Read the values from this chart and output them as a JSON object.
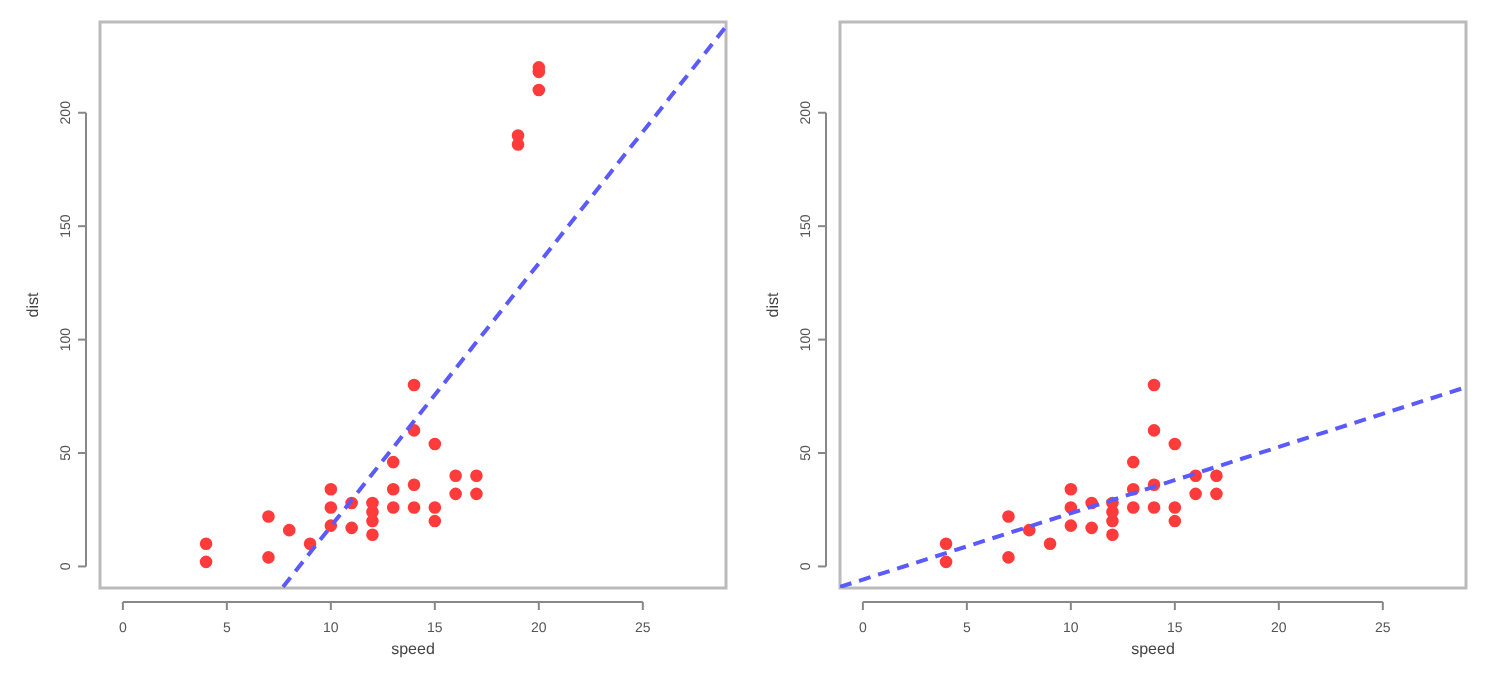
{
  "chart_data": [
    {
      "type": "scatter",
      "xlabel": "speed",
      "ylabel": "dist",
      "xlim": [
        -1.1,
        29
      ],
      "ylim": [
        -9.5,
        240
      ],
      "xticks": [
        0,
        5,
        10,
        15,
        20,
        25
      ],
      "yticks": [
        0,
        50,
        100,
        150,
        200
      ],
      "grid": false,
      "series": [
        {
          "marker": "circle",
          "color": "#ff3b3b",
          "x": [
            4,
            4,
            7,
            7,
            8,
            9,
            10,
            10,
            10,
            11,
            11,
            12,
            12,
            12,
            12,
            13,
            13,
            13,
            14,
            14,
            14,
            14,
            15,
            15,
            15,
            16,
            16,
            17,
            17,
            19,
            19,
            20,
            20,
            20
          ],
          "values": [
            2,
            10,
            4,
            22,
            16,
            10,
            18,
            26,
            34,
            17,
            28,
            14,
            20,
            24,
            28,
            26,
            34,
            46,
            26,
            36,
            60,
            80,
            20,
            26,
            54,
            32,
            40,
            32,
            40,
            186,
            190,
            210,
            218,
            220
          ]
        },
        {
          "type": "line",
          "color": "#5a5aff",
          "line_style": "dashed",
          "x": [
            7.7,
            29
          ],
          "values": [
            -9,
            238
          ]
        }
      ]
    },
    {
      "type": "scatter",
      "xlabel": "speed",
      "ylabel": "dist",
      "xlim": [
        -1.1,
        29
      ],
      "ylim": [
        -9.5,
        240
      ],
      "xticks": [
        0,
        5,
        10,
        15,
        20,
        25
      ],
      "yticks": [
        0,
        50,
        100,
        150,
        200
      ],
      "grid": false,
      "series": [
        {
          "marker": "circle",
          "color": "#ff3b3b",
          "x": [
            4,
            4,
            7,
            7,
            8,
            9,
            10,
            10,
            10,
            11,
            11,
            12,
            12,
            12,
            12,
            13,
            13,
            13,
            14,
            14,
            14,
            14,
            15,
            15,
            15,
            16,
            16,
            17,
            17
          ],
          "values": [
            2,
            10,
            4,
            22,
            16,
            10,
            18,
            26,
            34,
            17,
            28,
            14,
            20,
            24,
            28,
            26,
            34,
            46,
            26,
            36,
            60,
            80,
            20,
            26,
            54,
            32,
            40,
            32,
            40
          ]
        },
        {
          "type": "line",
          "color": "#5a5aff",
          "line_style": "dashed",
          "x": [
            -1.1,
            29
          ],
          "values": [
            -9,
            79
          ]
        }
      ]
    }
  ]
}
